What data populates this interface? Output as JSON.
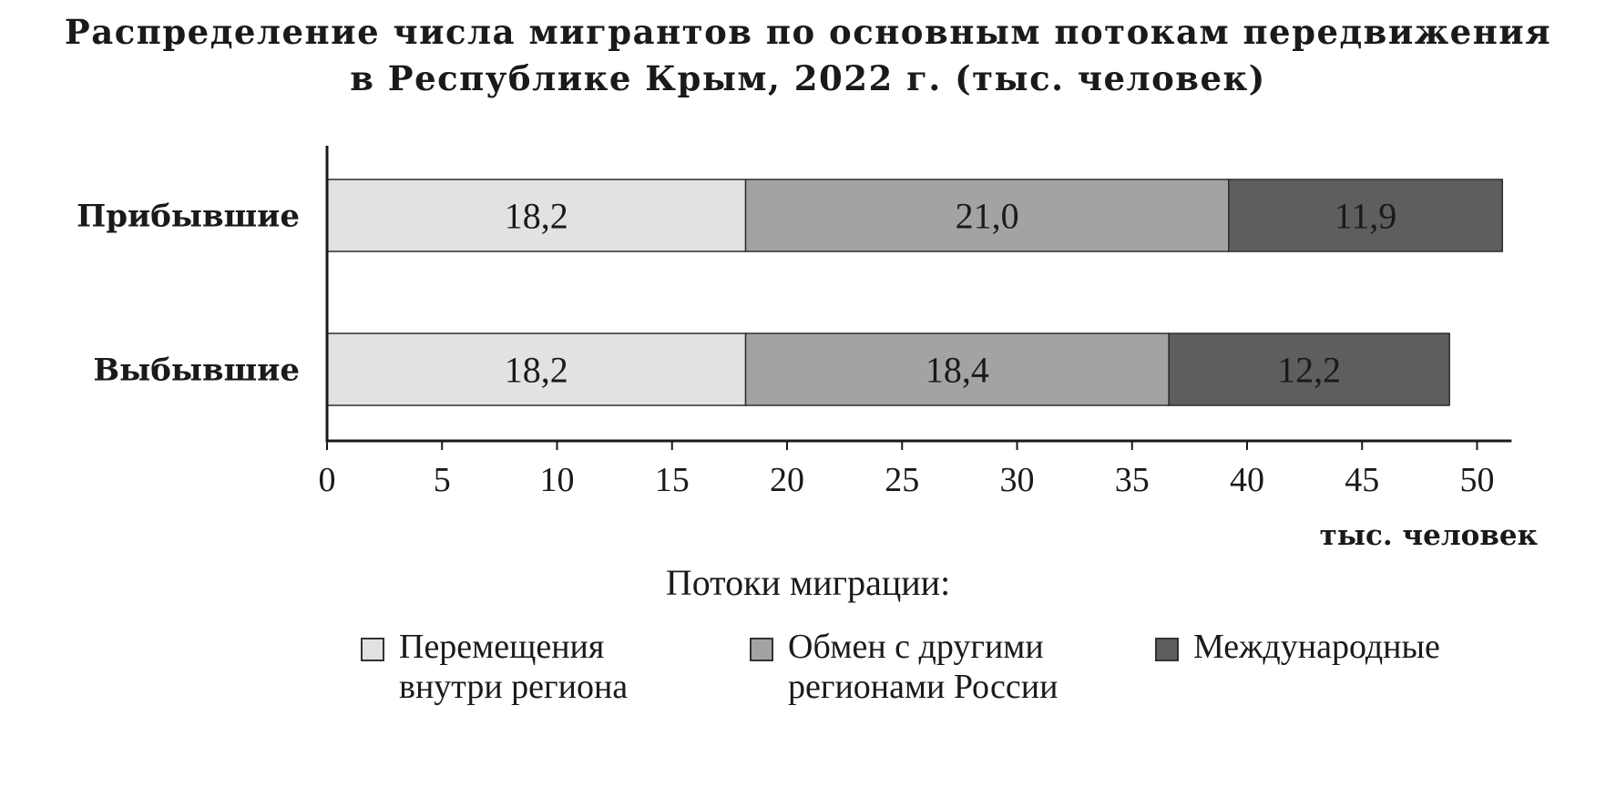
{
  "chart_data": {
    "type": "bar",
    "orientation": "horizontal",
    "stacked": true,
    "title": "Распределение числа мигрантов по основным потокам передвижения",
    "title_line2": "в Республике Крым, 2022 г. (тыс. человек)",
    "categories": [
      "Прибывшие",
      "Выбывшие"
    ],
    "series": [
      {
        "name": "Перемещения\nвнутри региона",
        "values": [
          18.2,
          18.2
        ],
        "labels": [
          "18,2",
          "18,2"
        ],
        "color": "#e2e2e2"
      },
      {
        "name": "Обмен с другими\nрегионами России",
        "values": [
          21.0,
          18.4
        ],
        "labels": [
          "21,0",
          "18,4"
        ],
        "color": "#a3a3a3"
      },
      {
        "name": "Международные",
        "values": [
          11.9,
          12.2
        ],
        "labels": [
          "11,9",
          "12,2"
        ],
        "color": "#5e5e5e"
      }
    ],
    "xlim": [
      0,
      51.5
    ],
    "xticks": [
      0,
      5,
      10,
      15,
      20,
      25,
      30,
      35,
      40,
      45,
      50
    ],
    "xlabel": "тыс. человек",
    "ylabel": "",
    "grid": false,
    "legend_title": "Потоки миграции:",
    "legend_position": "bottom"
  }
}
